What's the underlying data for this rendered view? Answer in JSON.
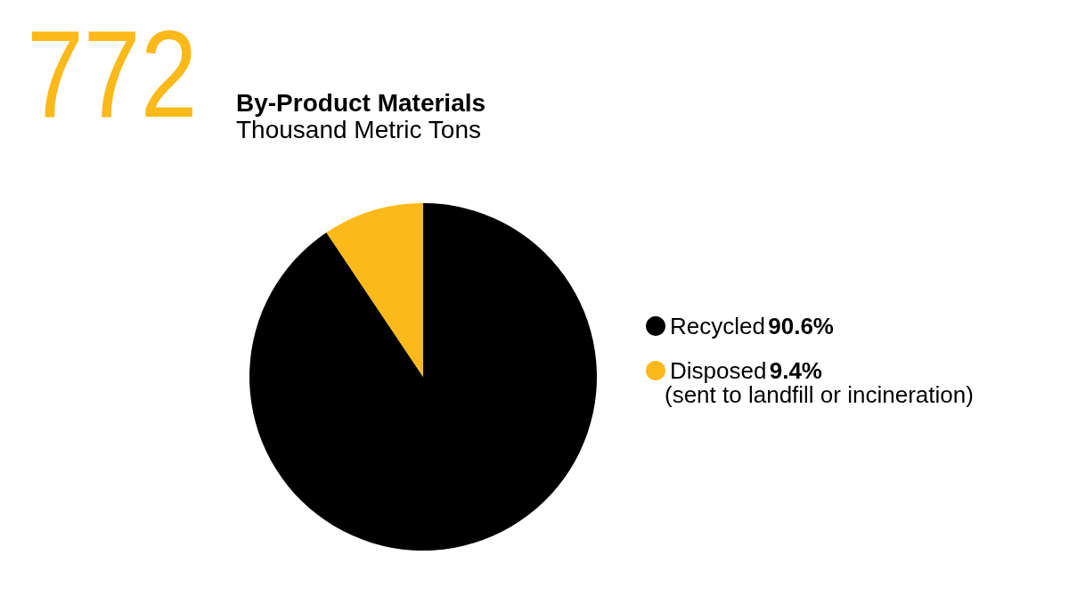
{
  "chart_data": {
    "type": "pie",
    "title": "By-Product Materials",
    "subtitle": "Thousand Metric Tons",
    "categories": [
      "Recycled",
      "Disposed"
    ],
    "values": [
      90.6,
      9.4
    ],
    "colors": [
      "#000000",
      "#fbb91a"
    ],
    "value_labels": [
      "90.6%",
      "9.4%"
    ],
    "legend": "right",
    "annotations": [
      "772",
      "(sent to landfill or incineration)"
    ]
  }
}
